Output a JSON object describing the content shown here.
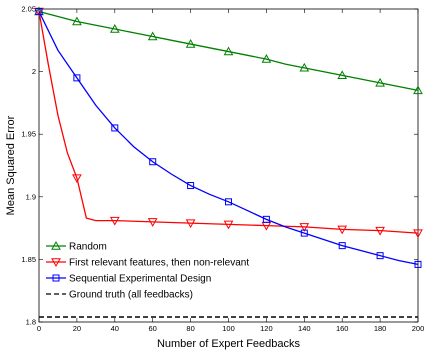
{
  "chart_data": {
    "type": "line",
    "title": "",
    "xlabel": "Number of Expert Feedbacks",
    "ylabel": "Mean Squared Error",
    "xlim": [
      0,
      200
    ],
    "ylim": [
      1.8,
      2.05
    ],
    "xticks": [
      0,
      20,
      40,
      60,
      80,
      100,
      120,
      140,
      160,
      180,
      200
    ],
    "yticks": [
      1.8,
      1.85,
      1.9,
      1.95,
      2,
      2.05
    ],
    "ytick_labels": [
      "1.8",
      "1.85",
      "1.9",
      "1.95",
      "2",
      "2.05"
    ],
    "grid": false,
    "legend_position": "bottom-left",
    "series": [
      {
        "name": "Random",
        "color": "#008000",
        "marker": "triangle-up",
        "line_style": "solid",
        "x": [
          0,
          10,
          20,
          30,
          40,
          50,
          60,
          70,
          80,
          90,
          100,
          110,
          120,
          130,
          140,
          150,
          160,
          170,
          180,
          190,
          200
        ],
        "y": [
          2.048,
          2.044,
          2.04,
          2.037,
          2.034,
          2.031,
          2.028,
          2.025,
          2.022,
          2.019,
          2.016,
          2.013,
          2.01,
          2.006,
          2.003,
          2.0,
          1.997,
          1.994,
          1.991,
          1.988,
          1.985
        ],
        "marker_x": [
          0,
          20,
          40,
          60,
          80,
          100,
          120,
          140,
          160,
          180,
          200
        ],
        "marker_y": [
          2.048,
          2.04,
          2.034,
          2.028,
          2.022,
          2.016,
          2.01,
          2.003,
          1.997,
          1.991,
          1.985
        ]
      },
      {
        "name": "First relevant features, then non-relevant",
        "color": "#ff0000",
        "marker": "triangle-down",
        "line_style": "solid",
        "x": [
          0,
          5,
          10,
          15,
          20,
          25,
          30,
          40,
          60,
          80,
          100,
          120,
          140,
          160,
          180,
          200
        ],
        "y": [
          2.048,
          2.005,
          1.965,
          1.935,
          1.915,
          1.883,
          1.881,
          1.881,
          1.88,
          1.879,
          1.878,
          1.877,
          1.876,
          1.874,
          1.873,
          1.871
        ],
        "marker_x": [
          0,
          20,
          40,
          60,
          80,
          100,
          120,
          140,
          160,
          180,
          200
        ],
        "marker_y": [
          2.048,
          1.915,
          1.881,
          1.88,
          1.879,
          1.878,
          1.877,
          1.876,
          1.874,
          1.873,
          1.871
        ]
      },
      {
        "name": "Sequential Experimental Design",
        "color": "#0000ff",
        "marker": "square",
        "line_style": "solid",
        "x": [
          0,
          10,
          20,
          30,
          40,
          50,
          60,
          70,
          80,
          90,
          100,
          110,
          120,
          130,
          140,
          150,
          160,
          170,
          180,
          190,
          200
        ],
        "y": [
          2.048,
          2.017,
          1.995,
          1.973,
          1.955,
          1.94,
          1.928,
          1.918,
          1.909,
          1.902,
          1.896,
          1.889,
          1.882,
          1.876,
          1.871,
          1.866,
          1.861,
          1.857,
          1.853,
          1.849,
          1.846
        ],
        "marker_x": [
          0,
          20,
          40,
          60,
          80,
          100,
          120,
          140,
          160,
          180,
          200
        ],
        "marker_y": [
          2.048,
          1.995,
          1.955,
          1.928,
          1.909,
          1.896,
          1.882,
          1.871,
          1.861,
          1.853,
          1.846
        ]
      },
      {
        "name": "Ground truth (all feedbacks)",
        "color": "#000000",
        "marker": "none",
        "line_style": "dashed",
        "x": [
          0,
          200
        ],
        "y": [
          1.804,
          1.804
        ]
      }
    ]
  }
}
